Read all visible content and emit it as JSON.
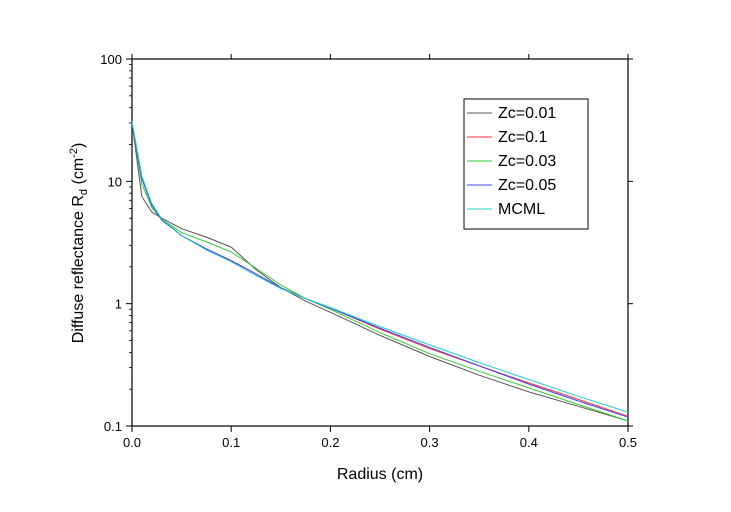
{
  "chart_data": {
    "type": "line",
    "title": "",
    "xlabel": "Radius (cm)",
    "ylabel": {
      "main": "Diffuse reflectance R",
      "subscript": "d",
      "unit_open": " (cm",
      "superscript": "-2",
      "unit_close": ")"
    },
    "xlim": [
      0.0,
      0.5
    ],
    "ylim": [
      0.1,
      100
    ],
    "yscale": "log",
    "grid": false,
    "legend_position": "top-right",
    "x_ticks": [
      {
        "value": 0.0,
        "label": "0.0"
      },
      {
        "value": 0.1,
        "label": "0.1"
      },
      {
        "value": 0.2,
        "label": "0.2"
      },
      {
        "value": 0.3,
        "label": "0.3"
      },
      {
        "value": 0.4,
        "label": "0.4"
      },
      {
        "value": 0.5,
        "label": "0.5"
      }
    ],
    "y_ticks": [
      {
        "value": 0.1,
        "label": "0.1"
      },
      {
        "value": 1,
        "label": "1"
      },
      {
        "value": 10,
        "label": "10"
      },
      {
        "value": 100,
        "label": "100"
      }
    ],
    "x": [
      0.0,
      0.01,
      0.02,
      0.03,
      0.05,
      0.075,
      0.1,
      0.125,
      0.15,
      0.175,
      0.2,
      0.25,
      0.3,
      0.35,
      0.4,
      0.45,
      0.5
    ],
    "series": [
      {
        "name": "Zc=0.01",
        "color": "#555555",
        "values": [
          30,
          7.5,
          5.6,
          5.0,
          4.1,
          3.5,
          2.9,
          1.9,
          1.35,
          1.05,
          0.85,
          0.55,
          0.37,
          0.26,
          0.19,
          0.145,
          0.11
        ]
      },
      {
        "name": "Zc=0.1",
        "color": "#ff3333",
        "values": [
          30,
          10.5,
          6.4,
          4.9,
          3.6,
          2.8,
          2.25,
          1.75,
          1.35,
          1.1,
          0.92,
          0.62,
          0.43,
          0.31,
          0.225,
          0.165,
          0.12
        ]
      },
      {
        "name": "Zc=0.03",
        "color": "#33cc33",
        "values": [
          30,
          9.5,
          6.1,
          4.9,
          3.8,
          3.2,
          2.65,
          1.95,
          1.42,
          1.1,
          0.9,
          0.58,
          0.39,
          0.28,
          0.205,
          0.15,
          0.11
        ]
      },
      {
        "name": "Zc=0.05",
        "color": "#4444ee",
        "values": [
          30,
          10.5,
          6.4,
          4.8,
          3.6,
          2.8,
          2.25,
          1.75,
          1.35,
          1.1,
          0.92,
          0.63,
          0.44,
          0.31,
          0.22,
          0.16,
          0.118
        ]
      },
      {
        "name": "MCML",
        "color": "#22cccc",
        "values": [
          31,
          11.0,
          6.6,
          4.9,
          3.6,
          2.75,
          2.2,
          1.7,
          1.33,
          1.1,
          0.93,
          0.65,
          0.46,
          0.33,
          0.24,
          0.175,
          0.13
        ]
      }
    ]
  }
}
